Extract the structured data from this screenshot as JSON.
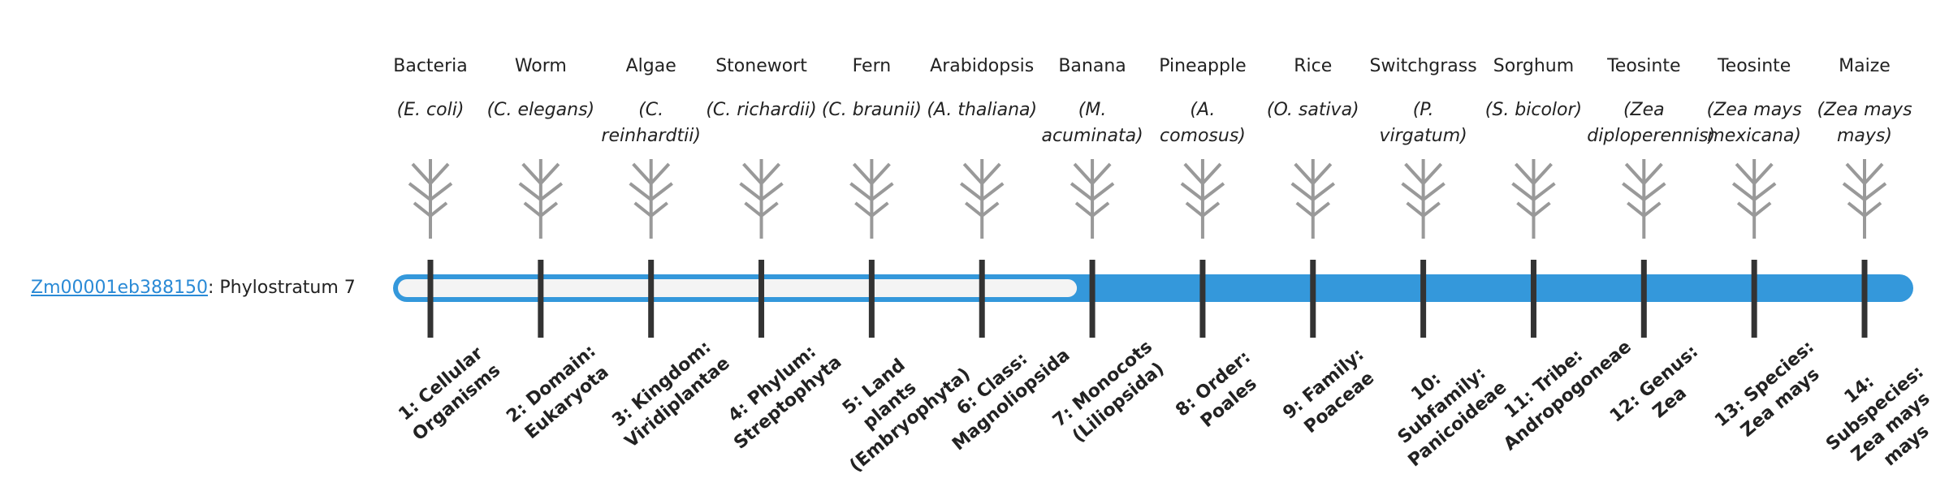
{
  "gene": {
    "link": "Zm00001eb388150",
    "suffix": ": Phylostratum 7"
  },
  "organisms": [
    {
      "name": "Bacteria",
      "species": "(E. coli)",
      "stratum": "1: Cellular Organisms"
    },
    {
      "name": "Worm",
      "species": "(C. elegans)",
      "stratum": "2: Domain: Eukaryota"
    },
    {
      "name": "Algae",
      "species": "(C. reinhardtii)",
      "stratum": "3: Kingdom: Viridiplantae"
    },
    {
      "name": "Stonewort",
      "species": "(C. richardii)",
      "stratum": "4: Phylum: Streptophyta"
    },
    {
      "name": "Fern",
      "species": "(C. braunii)",
      "stratum": "5: Land plants (Embryophyta)"
    },
    {
      "name": "Arabidopsis",
      "species": "(A. thaliana)",
      "stratum": "6: Class: Magnoliopsida"
    },
    {
      "name": "Banana",
      "species": "(M. acuminata)",
      "stratum": "7: Monocots (Liliopsida)"
    },
    {
      "name": "Pineapple",
      "species": "(A. comosus)",
      "stratum": "8: Order: Poales"
    },
    {
      "name": "Rice",
      "species": "(O. sativa)",
      "stratum": "9: Family: Poaceae"
    },
    {
      "name": "Switchgrass",
      "species": "(P. virgatum)",
      "stratum": "10: Subfamily: Panicoideae"
    },
    {
      "name": "Sorghum",
      "species": "(S. bicolor)",
      "stratum": "11: Tribe: Andropogoneae"
    },
    {
      "name": "Teosinte",
      "species": "(Zea diploperennis)",
      "stratum": "12: Genus: Zea"
    },
    {
      "name": "Teosinte",
      "species": "(Zea mays mexicana)",
      "stratum": "13: Species: Zea mays"
    },
    {
      "name": "Maize",
      "species": "(Zea mays mays)",
      "stratum": "14: Subspecies: Zea mays mays"
    }
  ]
}
